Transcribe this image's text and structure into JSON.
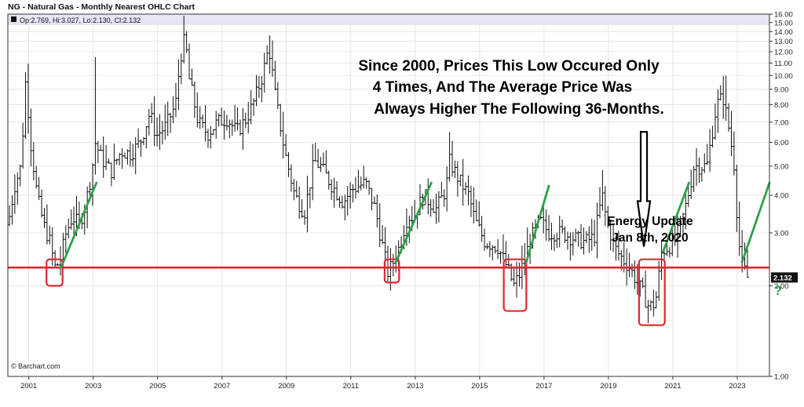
{
  "header": {
    "title": "NG - Natural Gas - Monthly Nearest OHLC Chart",
    "ohlc_readout": "Op:2.769, Hi:3.027, Lo:2.130, Cl:2.132"
  },
  "watermark": "© Barchart.com",
  "annotations": {
    "main_lines": [
      "Since 2000, Prices This Low Occured Only",
      "4 Times, And The Average Price Was",
      "Always Higher The Following 36-Months."
    ],
    "energy_lines": [
      "Energy Update",
      "Jan 8th, 2020"
    ],
    "question_mark": "?"
  },
  "colors": {
    "support_line": "#e0282b",
    "trend_arrows": "#2ca24a",
    "bars": "#111111",
    "header_band": "#e6e6f5",
    "last_price_box": "#111111"
  },
  "chart_data": {
    "type": "ohlc",
    "title": "NG - Natural Gas - Monthly Nearest OHLC Chart",
    "x_range": [
      2000.35,
      2024.0
    ],
    "ylim": [
      1.0,
      16.0
    ],
    "y_scale": "log",
    "y_axis_side": "right",
    "y_ticks": [
      "16.00",
      "15.00",
      "14.00",
      "13.00",
      "12.00",
      "11.00",
      "10.00",
      "9.00",
      "8.00",
      "7.00",
      "6.00",
      "5.00",
      "4.00",
      "3.00",
      "2.00",
      "1.00"
    ],
    "x_ticks": [
      "2001",
      "2003",
      "2005",
      "2007",
      "2009",
      "2011",
      "2013",
      "2015",
      "2017",
      "2019",
      "2021",
      "2023"
    ],
    "last_price": "2.132",
    "support_level": 2.3,
    "price_path": [
      [
        2000.4,
        3.2
      ],
      [
        2000.6,
        4.3
      ],
      [
        2000.8,
        5.0
      ],
      [
        2000.95,
        9.8
      ],
      [
        2001.1,
        6.0
      ],
      [
        2001.3,
        4.0
      ],
      [
        2001.5,
        3.2
      ],
      [
        2001.7,
        2.8
      ],
      [
        2001.85,
        2.3
      ],
      [
        2002.0,
        2.4
      ],
      [
        2002.2,
        3.0
      ],
      [
        2002.4,
        3.4
      ],
      [
        2002.6,
        3.2
      ],
      [
        2002.8,
        3.7
      ],
      [
        2003.0,
        4.8
      ],
      [
        2003.1,
        6.0
      ],
      [
        2003.3,
        5.3
      ],
      [
        2003.6,
        4.8
      ],
      [
        2003.9,
        5.6
      ],
      [
        2004.2,
        5.5
      ],
      [
        2004.5,
        6.0
      ],
      [
        2004.8,
        7.5
      ],
      [
        2005.0,
        6.3
      ],
      [
        2005.3,
        6.8
      ],
      [
        2005.6,
        8.0
      ],
      [
        2005.75,
        11.5
      ],
      [
        2005.9,
        13.5
      ],
      [
        2006.0,
        10.0
      ],
      [
        2006.3,
        7.0
      ],
      [
        2006.6,
        6.4
      ],
      [
        2006.9,
        7.0
      ],
      [
        2007.2,
        7.2
      ],
      [
        2007.5,
        6.5
      ],
      [
        2007.8,
        7.2
      ],
      [
        2008.0,
        8.0
      ],
      [
        2008.3,
        10.0
      ],
      [
        2008.5,
        12.5
      ],
      [
        2008.7,
        8.5
      ],
      [
        2009.0,
        5.5
      ],
      [
        2009.3,
        4.0
      ],
      [
        2009.6,
        3.5
      ],
      [
        2009.9,
        5.2
      ],
      [
        2010.1,
        5.0
      ],
      [
        2010.4,
        4.4
      ],
      [
        2010.8,
        3.8
      ],
      [
        2011.1,
        4.2
      ],
      [
        2011.5,
        4.4
      ],
      [
        2011.8,
        3.6
      ],
      [
        2012.0,
        2.8
      ],
      [
        2012.2,
        2.2
      ],
      [
        2012.5,
        2.6
      ],
      [
        2012.8,
        3.4
      ],
      [
        2013.0,
        3.4
      ],
      [
        2013.3,
        4.0
      ],
      [
        2013.7,
        3.6
      ],
      [
        2014.0,
        4.2
      ],
      [
        2014.1,
        5.2
      ],
      [
        2014.4,
        4.5
      ],
      [
        2014.7,
        4.0
      ],
      [
        2014.9,
        3.3
      ],
      [
        2015.2,
        2.8
      ],
      [
        2015.6,
        2.7
      ],
      [
        2015.9,
        2.3
      ],
      [
        2016.1,
        2.0
      ],
      [
        2016.3,
        2.2
      ],
      [
        2016.6,
        2.8
      ],
      [
        2016.9,
        3.3
      ],
      [
        2017.2,
        3.0
      ],
      [
        2017.6,
        3.0
      ],
      [
        2017.9,
        2.9
      ],
      [
        2018.3,
        2.8
      ],
      [
        2018.6,
        2.9
      ],
      [
        2018.85,
        4.0
      ],
      [
        2019.0,
        3.2
      ],
      [
        2019.3,
        2.6
      ],
      [
        2019.7,
        2.3
      ],
      [
        2020.0,
        2.0
      ],
      [
        2020.3,
        1.7
      ],
      [
        2020.5,
        1.75
      ],
      [
        2020.7,
        2.6
      ],
      [
        2020.9,
        2.7
      ],
      [
        2021.1,
        2.8
      ],
      [
        2021.4,
        3.5
      ],
      [
        2021.7,
        5.0
      ],
      [
        2021.9,
        5.0
      ],
      [
        2022.1,
        5.0
      ],
      [
        2022.4,
        8.0
      ],
      [
        2022.6,
        8.5
      ],
      [
        2022.8,
        6.5
      ],
      [
        2022.95,
        5.0
      ],
      [
        2023.05,
        3.2
      ],
      [
        2023.15,
        2.4
      ],
      [
        2023.25,
        2.3
      ],
      [
        2023.33,
        2.13
      ]
    ],
    "spikes": [
      [
        2003.1,
        11.5
      ],
      [
        2005.8,
        15.8
      ],
      [
        2008.5,
        13.6
      ],
      [
        2014.1,
        6.5
      ],
      [
        2018.85,
        4.85
      ],
      [
        2022.65,
        10.0
      ]
    ],
    "low_zones": [
      {
        "x": [
          2001.55,
          2002.05
        ],
        "y": [
          2.0,
          2.45
        ]
      },
      {
        "x": [
          2012.05,
          2012.5
        ],
        "y": [
          2.05,
          2.45
        ]
      },
      {
        "x": [
          2015.75,
          2016.45
        ],
        "y": [
          1.65,
          2.45
        ]
      },
      {
        "x": [
          2019.95,
          2020.75
        ],
        "y": [
          1.48,
          2.45
        ]
      }
    ],
    "trend_arrows": [
      {
        "x": [
          2002.0,
          2003.1
        ],
        "y": [
          2.3,
          4.4
        ]
      },
      {
        "x": [
          2012.4,
          2013.5
        ],
        "y": [
          2.4,
          4.4
        ]
      },
      {
        "x": [
          2016.45,
          2017.15
        ],
        "y": [
          2.4,
          4.3
        ]
      },
      {
        "x": [
          2020.7,
          2021.5
        ],
        "y": [
          2.6,
          4.4
        ]
      },
      {
        "x": [
          2023.15,
          2024.0
        ],
        "y": [
          2.4,
          4.4
        ]
      }
    ],
    "down_arrow": {
      "x": 2020.1,
      "y": [
        6.5,
        2.7
      ]
    }
  }
}
